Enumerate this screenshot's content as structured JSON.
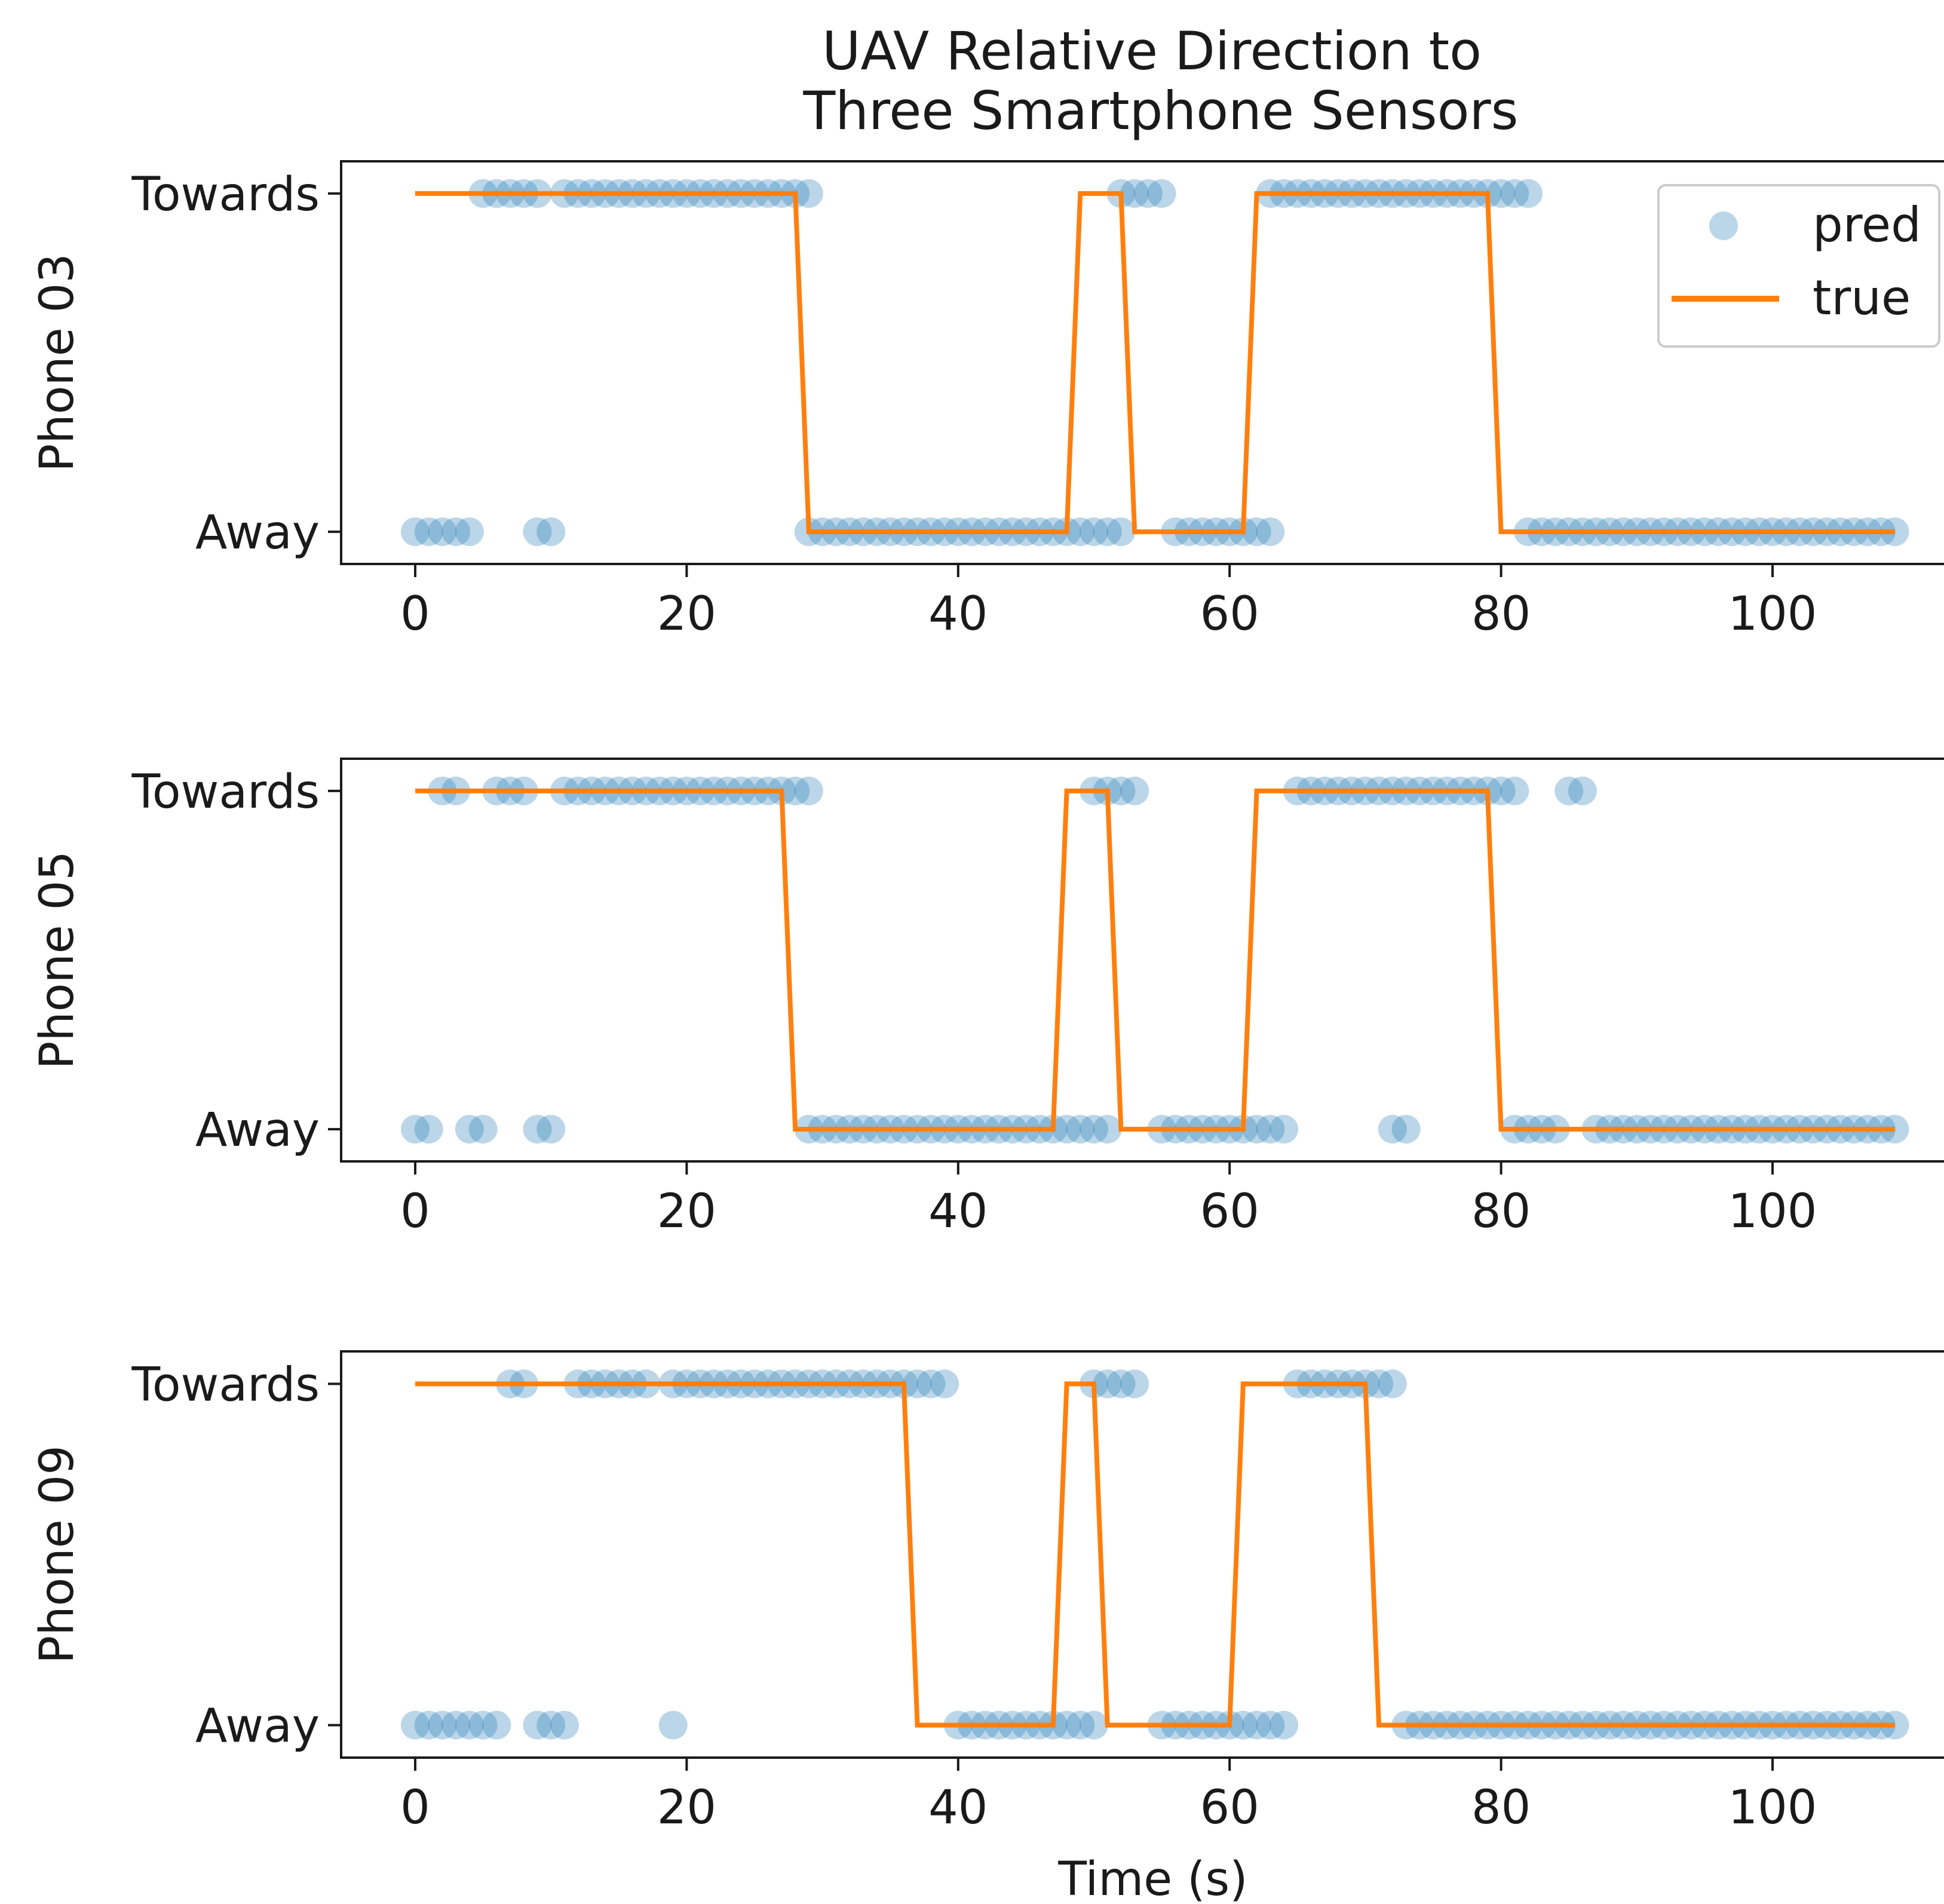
{
  "title_lines": [
    "UAV Relative Direction to",
    "Three Smartphone Sensors"
  ],
  "xlabel": "Time (s)",
  "legend": {
    "pred": "pred",
    "true": "true"
  },
  "colors": {
    "pred": "#1f77b4",
    "true": "#ff7f0e"
  },
  "chart_data": [
    {
      "type": "line",
      "ylabel": "Phone 03",
      "xlim": [
        -3,
        112
      ],
      "xticks": [
        0,
        20,
        40,
        60,
        80,
        100
      ],
      "ytick_labels": {
        "0": "Away",
        "1": "Towards"
      },
      "series": [
        {
          "name": "true",
          "kind": "line",
          "x": [
            0,
            28,
            29,
            48,
            49,
            52,
            53,
            61,
            62,
            79,
            80,
            109
          ],
          "y": [
            1,
            1,
            0,
            0,
            1,
            1,
            0,
            0,
            1,
            1,
            0,
            0
          ]
        },
        {
          "name": "pred",
          "kind": "scatter",
          "towards_x": [
            5,
            6,
            7,
            8,
            9,
            11,
            12,
            13,
            14,
            15,
            16,
            17,
            18,
            19,
            20,
            21,
            22,
            23,
            24,
            25,
            26,
            27,
            28,
            29,
            52,
            53,
            54,
            55,
            63,
            64,
            65,
            66,
            67,
            68,
            69,
            70,
            71,
            72,
            73,
            74,
            75,
            76,
            77,
            78,
            79,
            80,
            81,
            82
          ],
          "away_x": [
            0,
            1,
            2,
            3,
            4,
            9,
            10,
            29,
            30,
            31,
            32,
            33,
            34,
            35,
            36,
            37,
            38,
            39,
            40,
            41,
            42,
            43,
            44,
            45,
            46,
            47,
            48,
            49,
            50,
            51,
            52,
            56,
            57,
            58,
            59,
            60,
            61,
            62,
            63,
            82,
            83,
            84,
            85,
            86,
            87,
            88,
            89,
            90,
            91,
            92,
            93,
            94,
            95,
            96,
            97,
            98,
            99,
            100,
            101,
            102,
            103,
            104,
            105,
            106,
            107,
            108,
            109
          ]
        }
      ]
    },
    {
      "type": "line",
      "ylabel": "Phone 05",
      "xlim": [
        -3,
        112
      ],
      "xticks": [
        0,
        20,
        40,
        60,
        80,
        100
      ],
      "ytick_labels": {
        "0": "Away",
        "1": "Towards"
      },
      "series": [
        {
          "name": "true",
          "kind": "line",
          "x": [
            0,
            27,
            28,
            47,
            48,
            51,
            52,
            61,
            62,
            79,
            80,
            109
          ],
          "y": [
            1,
            1,
            0,
            0,
            1,
            1,
            0,
            0,
            1,
            1,
            0,
            0
          ]
        },
        {
          "name": "pred",
          "kind": "scatter",
          "towards_x": [
            2,
            3,
            6,
            7,
            8,
            11,
            12,
            13,
            14,
            15,
            16,
            17,
            18,
            19,
            20,
            21,
            22,
            23,
            24,
            25,
            26,
            27,
            28,
            29,
            50,
            51,
            52,
            53,
            65,
            66,
            67,
            68,
            69,
            70,
            71,
            72,
            73,
            74,
            75,
            76,
            77,
            78,
            79,
            80,
            81,
            85,
            86
          ],
          "away_x": [
            0,
            1,
            4,
            5,
            9,
            10,
            29,
            30,
            31,
            32,
            33,
            34,
            35,
            36,
            37,
            38,
            39,
            40,
            41,
            42,
            43,
            44,
            45,
            46,
            47,
            48,
            49,
            50,
            51,
            55,
            56,
            57,
            58,
            59,
            60,
            61,
            62,
            63,
            64,
            72,
            73,
            81,
            82,
            83,
            84,
            87,
            88,
            89,
            90,
            91,
            92,
            93,
            94,
            95,
            96,
            97,
            98,
            99,
            100,
            101,
            102,
            103,
            104,
            105,
            106,
            107,
            108,
            109
          ]
        }
      ]
    },
    {
      "type": "line",
      "ylabel": "Phone 09",
      "xlim": [
        -3,
        112
      ],
      "xticks": [
        0,
        20,
        40,
        60,
        80,
        100
      ],
      "ytick_labels": {
        "0": "Away",
        "1": "Towards"
      },
      "series": [
        {
          "name": "true",
          "kind": "line",
          "x": [
            0,
            36,
            37,
            47,
            48,
            50,
            51,
            60,
            61,
            70,
            71,
            109
          ],
          "y": [
            1,
            1,
            0,
            0,
            1,
            1,
            0,
            0,
            1,
            1,
            0,
            0
          ]
        },
        {
          "name": "pred",
          "kind": "scatter",
          "towards_x": [
            7,
            8,
            12,
            13,
            14,
            15,
            16,
            17,
            19,
            20,
            21,
            22,
            23,
            24,
            25,
            26,
            27,
            28,
            29,
            30,
            31,
            32,
            33,
            34,
            35,
            36,
            37,
            38,
            39,
            50,
            51,
            52,
            53,
            65,
            66,
            67,
            68,
            69,
            70,
            71,
            72
          ],
          "away_x": [
            0,
            1,
            2,
            3,
            4,
            5,
            6,
            9,
            10,
            11,
            19,
            40,
            41,
            42,
            43,
            44,
            45,
            46,
            47,
            48,
            49,
            50,
            55,
            56,
            57,
            58,
            59,
            60,
            61,
            62,
            63,
            64,
            73,
            74,
            75,
            76,
            77,
            78,
            79,
            80,
            81,
            82,
            83,
            84,
            85,
            86,
            87,
            88,
            89,
            90,
            91,
            92,
            93,
            94,
            95,
            96,
            97,
            98,
            99,
            100,
            101,
            102,
            103,
            104,
            105,
            106,
            107,
            108,
            109
          ]
        }
      ]
    }
  ]
}
